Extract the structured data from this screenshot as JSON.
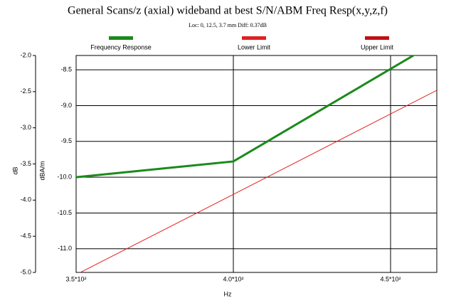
{
  "chart_data": {
    "type": "line",
    "title": "General Scans/z (axial) wideband at best S/N/ABM Freq Resp(x,y,z,f)",
    "subtitle": "Loc: 0, 12.5, 3.7 mm Diff: 0.37dB",
    "xlabel": "Hz",
    "ylabel": "dB",
    "y2label": "dBA/m",
    "x": [
      350,
      400,
      465
    ],
    "series": [
      {
        "name": "Frequency Response",
        "color": "#1a8a1a",
        "axis": "y2",
        "values": [
          -10.0,
          -9.78,
          -8.1
        ]
      },
      {
        "name": "Lower Limit",
        "color": "#e02020",
        "axis": "y2",
        "values": [
          -11.36,
          -10.24,
          -8.78
        ]
      },
      {
        "name": "Upper Limit",
        "color": "#c01010",
        "axis": "y2",
        "values": [
          null,
          null,
          null
        ]
      }
    ],
    "xlim": [
      350,
      464.7
    ],
    "xticks": [
      {
        "value": 350,
        "label": "3.5*10²"
      },
      {
        "value": 400,
        "label": "4.0*10²"
      },
      {
        "value": 450,
        "label": "4.5*10²"
      }
    ],
    "ylim": [
      -5,
      -2
    ],
    "yticks": [
      {
        "value": -2,
        "label": "-2.0"
      },
      -2.5,
      {
        "value": -3,
        "label": "-3.0"
      },
      -3.5,
      {
        "value": -4,
        "label": "-4.0"
      },
      -4.5,
      {
        "value": -5,
        "label": "-5.0"
      }
    ],
    "y2lim": [
      -11.33,
      -8.3
    ],
    "y2ticks": [
      -8.5,
      {
        "value": -9,
        "label": "-9.0"
      },
      -9.5,
      {
        "value": -10,
        "label": "-10.0"
      },
      -10.5,
      {
        "value": -11,
        "label": "-11.0"
      }
    ],
    "grid": true
  }
}
